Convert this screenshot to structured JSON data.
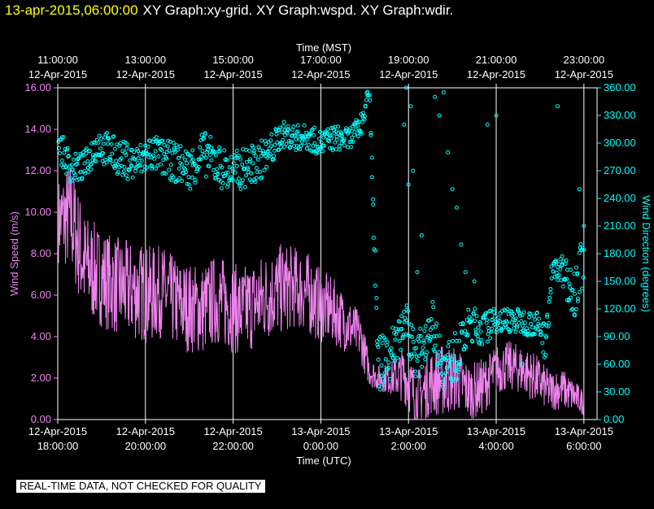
{
  "header": {
    "timestamp": "13-apr-2015,06:00:00",
    "titles": "XY Graph:xy-grid.  XY Graph:wspd.  XY Graph:wdir."
  },
  "disclaimer": "REAL-TIME DATA, NOT CHECKED FOR QUALITY",
  "colors": {
    "speed": "#ee82ee",
    "direction": "#00ffff",
    "grid": "#ffffff",
    "text": "#ffffff"
  },
  "chart_data": {
    "type": "line",
    "grid": true,
    "top_axis": {
      "label": "Time (MST)",
      "ticks": [
        {
          "hour": 18,
          "time": "11:00:00",
          "date": "12-Apr-2015"
        },
        {
          "hour": 20,
          "time": "13:00:00",
          "date": "12-Apr-2015"
        },
        {
          "hour": 22,
          "time": "15:00:00",
          "date": "12-Apr-2015"
        },
        {
          "hour": 24,
          "time": "17:00:00",
          "date": "12-Apr-2015"
        },
        {
          "hour": 26,
          "time": "19:00:00",
          "date": "12-Apr-2015"
        },
        {
          "hour": 28,
          "time": "21:00:00",
          "date": "12-Apr-2015"
        },
        {
          "hour": 30,
          "time": "23:00:00",
          "date": "12-Apr-2015"
        }
      ]
    },
    "bottom_axis": {
      "label": "Time (UTC)",
      "range_hours": [
        18,
        30.3
      ],
      "ticks": [
        {
          "hour": 18,
          "date": "12-Apr-2015",
          "time": "18:00:00"
        },
        {
          "hour": 20,
          "date": "12-Apr-2015",
          "time": "20:00:00"
        },
        {
          "hour": 22,
          "date": "12-Apr-2015",
          "time": "22:00:00"
        },
        {
          "hour": 24,
          "date": "13-Apr-2015",
          "time": "0:00:00"
        },
        {
          "hour": 26,
          "date": "13-Apr-2015",
          "time": "2:00:00"
        },
        {
          "hour": 28,
          "date": "13-Apr-2015",
          "time": "4:00:00"
        },
        {
          "hour": 30,
          "date": "13-Apr-2015",
          "time": "6:00:00"
        }
      ]
    },
    "left_axis": {
      "label": "Wind Speed (m/s)",
      "range": [
        0,
        16
      ],
      "ticks": [
        "0.00",
        "2.00",
        "4.00",
        "6.00",
        "8.00",
        "10.00",
        "12.00",
        "14.00",
        "16.00"
      ]
    },
    "right_axis": {
      "label": "Wind Direction (degrees)",
      "range": [
        0,
        360
      ],
      "ticks": [
        "0.00",
        "30.00",
        "60.00",
        "90.00",
        "120.00",
        "150.00",
        "180.00",
        "210.00",
        "240.00",
        "270.00",
        "300.00",
        "330.00",
        "360.00"
      ]
    },
    "series": [
      {
        "name": "wspd",
        "axis": "left",
        "style": "line",
        "x_hours": [
          18.0,
          18.3,
          18.6,
          18.9,
          19.2,
          19.5,
          19.8,
          20.1,
          20.4,
          20.7,
          21.0,
          21.3,
          21.6,
          21.9,
          22.2,
          22.5,
          22.8,
          23.1,
          23.4,
          23.7,
          24.0,
          24.3,
          24.6,
          24.9,
          25.1,
          25.3,
          25.6,
          25.9,
          26.2,
          26.5,
          26.8,
          27.1,
          27.4,
          27.7,
          28.0,
          28.3,
          28.6,
          28.9,
          29.2,
          29.5,
          29.8,
          30.0
        ],
        "values": [
          9.6,
          9.8,
          7.5,
          7.0,
          6.6,
          6.3,
          6.2,
          6.0,
          6.2,
          5.6,
          5.4,
          5.3,
          5.8,
          5.5,
          5.2,
          5.6,
          6.0,
          6.3,
          6.4,
          6.1,
          5.5,
          5.2,
          4.6,
          4.0,
          2.4,
          2.0,
          2.0,
          2.2,
          1.0,
          1.8,
          1.9,
          2.0,
          1.3,
          1.6,
          2.4,
          2.6,
          2.4,
          2.0,
          1.4,
          1.5,
          1.1,
          0.8
        ],
        "spread": [
          2.0,
          2.8,
          2.6,
          2.4,
          2.4,
          2.4,
          2.4,
          2.4,
          2.2,
          2.2,
          2.2,
          2.2,
          2.2,
          2.2,
          2.2,
          2.2,
          2.2,
          2.2,
          2.0,
          2.0,
          1.8,
          1.6,
          1.4,
          1.2,
          0.8,
          0.6,
          0.8,
          1.4,
          1.4,
          1.6,
          1.8,
          1.6,
          1.4,
          1.4,
          1.2,
          1.2,
          1.2,
          1.2,
          1.0,
          1.0,
          0.8,
          0.6
        ]
      },
      {
        "name": "wdir",
        "axis": "right",
        "style": "points",
        "x_hours": [
          18.0,
          18.3,
          18.6,
          18.9,
          19.2,
          19.5,
          19.8,
          20.1,
          20.4,
          20.7,
          21.0,
          21.3,
          21.6,
          21.9,
          22.2,
          22.5,
          22.8,
          23.1,
          23.4,
          23.7,
          24.0,
          24.3,
          24.6,
          24.9,
          25.0,
          25.1,
          25.3,
          25.6,
          25.9,
          26.2,
          26.5,
          26.8,
          27.1,
          27.4,
          27.7,
          28.0,
          28.3,
          28.6,
          28.9,
          29.1,
          29.3,
          29.5,
          29.8,
          30.0
        ],
        "values": [
          300,
          272,
          275,
          300,
          290,
          282,
          278,
          290,
          284,
          278,
          272,
          290,
          278,
          268,
          272,
          278,
          288,
          310,
          306,
          306,
          300,
          306,
          304,
          318,
          338,
          360,
          58,
          72,
          110,
          64,
          110,
          56,
          70,
          104,
          98,
          108,
          108,
          106,
          104,
          86,
          166,
          160,
          140,
          180
        ],
        "spread": [
          18,
          16,
          16,
          18,
          20,
          20,
          20,
          20,
          20,
          22,
          22,
          24,
          24,
          22,
          22,
          22,
          20,
          14,
          14,
          14,
          14,
          14,
          12,
          12,
          10,
          6,
          30,
          30,
          24,
          26,
          24,
          26,
          26,
          20,
          18,
          14,
          14,
          14,
          14,
          22,
          18,
          18,
          30,
          30
        ],
        "outliers": [
          [
            25.9,
            320
          ],
          [
            25.95,
            360
          ],
          [
            26.0,
            255
          ],
          [
            26.05,
            340
          ],
          [
            26.1,
            270
          ],
          [
            26.2,
            160
          ],
          [
            26.3,
            200
          ],
          [
            26.6,
            350
          ],
          [
            26.7,
            330
          ],
          [
            26.8,
            355
          ],
          [
            26.9,
            290
          ],
          [
            27.0,
            250
          ],
          [
            27.1,
            230
          ],
          [
            27.2,
            190
          ],
          [
            27.3,
            160
          ],
          [
            27.5,
            150
          ],
          [
            27.8,
            320
          ],
          [
            28.0,
            330
          ],
          [
            28.6,
            60
          ],
          [
            29.4,
            340
          ],
          [
            29.9,
            250
          ],
          [
            30.0,
            210
          ]
        ]
      }
    ]
  }
}
